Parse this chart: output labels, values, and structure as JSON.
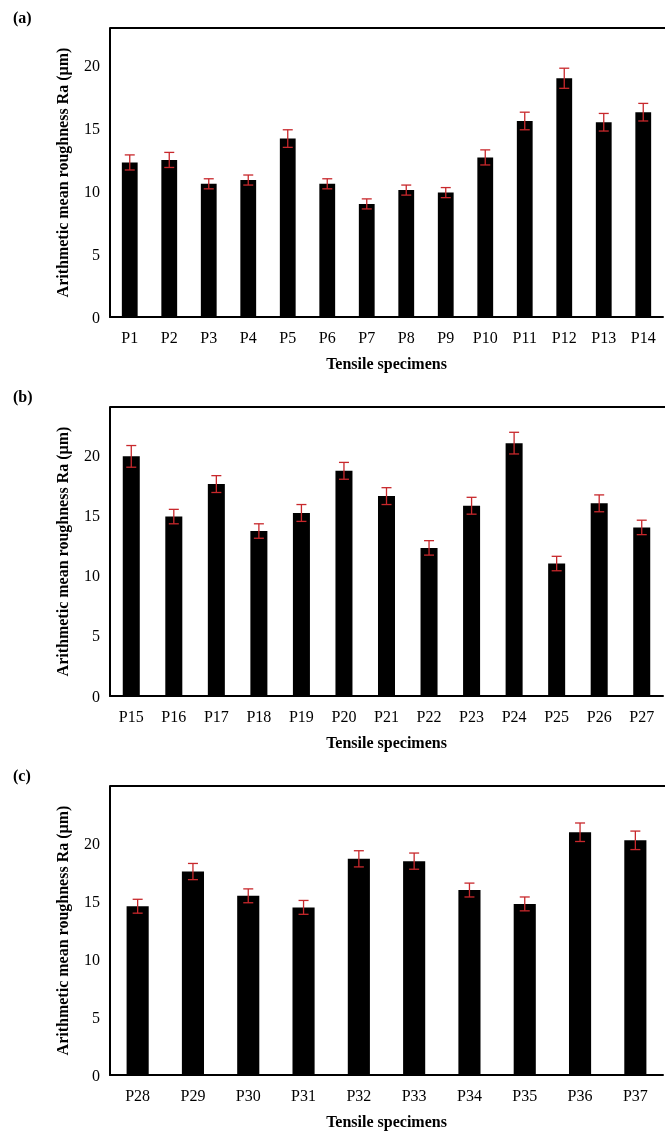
{
  "chart_data": [
    {
      "type": "bar",
      "title": "(a)",
      "xlabel": "Tensile specimens",
      "ylabel": "Arithmetic mean roughness Ra (µm)",
      "categories": [
        "P1",
        "P2",
        "P3",
        "P4",
        "P5",
        "P6",
        "P7",
        "P8",
        "P9",
        "P10",
        "P11",
        "P12",
        "P13",
        "P14"
      ],
      "values": [
        12.3,
        12.5,
        10.6,
        10.9,
        14.2,
        10.6,
        9.0,
        10.1,
        9.9,
        12.7,
        15.6,
        19.0,
        15.5,
        16.3
      ],
      "errors": [
        0.6,
        0.6,
        0.4,
        0.4,
        0.7,
        0.4,
        0.4,
        0.4,
        0.4,
        0.6,
        0.7,
        0.8,
        0.7,
        0.7
      ],
      "color": "#000000",
      "ylim": [
        0,
        23
      ],
      "yticks": [
        0,
        5,
        10,
        15,
        20
      ],
      "grid": false
    },
    {
      "type": "bar",
      "title": "(b)",
      "xlabel": "Tensile specimens",
      "ylabel": "Arithmetic mean roughness Ra (µm)",
      "categories": [
        "P15",
        "P16",
        "P17",
        "P18",
        "P19",
        "P20",
        "P21",
        "P22",
        "P23",
        "P24",
        "P25",
        "P26",
        "P27"
      ],
      "values": [
        19.9,
        14.9,
        17.6,
        13.7,
        15.2,
        18.7,
        16.6,
        12.3,
        15.8,
        21.0,
        11.0,
        16.0,
        14.0
      ],
      "errors": [
        0.9,
        0.6,
        0.7,
        0.6,
        0.7,
        0.7,
        0.7,
        0.6,
        0.7,
        0.9,
        0.6,
        0.7,
        0.6
      ],
      "color": "#000000",
      "ylim": [
        0,
        24
      ],
      "yticks": [
        0,
        5,
        10,
        15,
        20
      ],
      "grid": false
    },
    {
      "type": "bar",
      "title": "(c)",
      "xlabel": "Tensile specimens",
      "ylabel": "Arithmetic mean roughness Ra (µm)",
      "categories": [
        "P28",
        "P29",
        "P30",
        "P31",
        "P32",
        "P33",
        "P34",
        "P35",
        "P36",
        "P37"
      ],
      "values": [
        14.6,
        17.6,
        15.5,
        14.5,
        18.7,
        18.5,
        16.0,
        14.8,
        21.0,
        20.3
      ],
      "errors": [
        0.6,
        0.7,
        0.6,
        0.6,
        0.7,
        0.7,
        0.6,
        0.6,
        0.8,
        0.8
      ],
      "color": "#000000",
      "ylim": [
        0,
        25
      ],
      "yticks": [
        0,
        5,
        10,
        15,
        20
      ],
      "grid": false
    }
  ]
}
